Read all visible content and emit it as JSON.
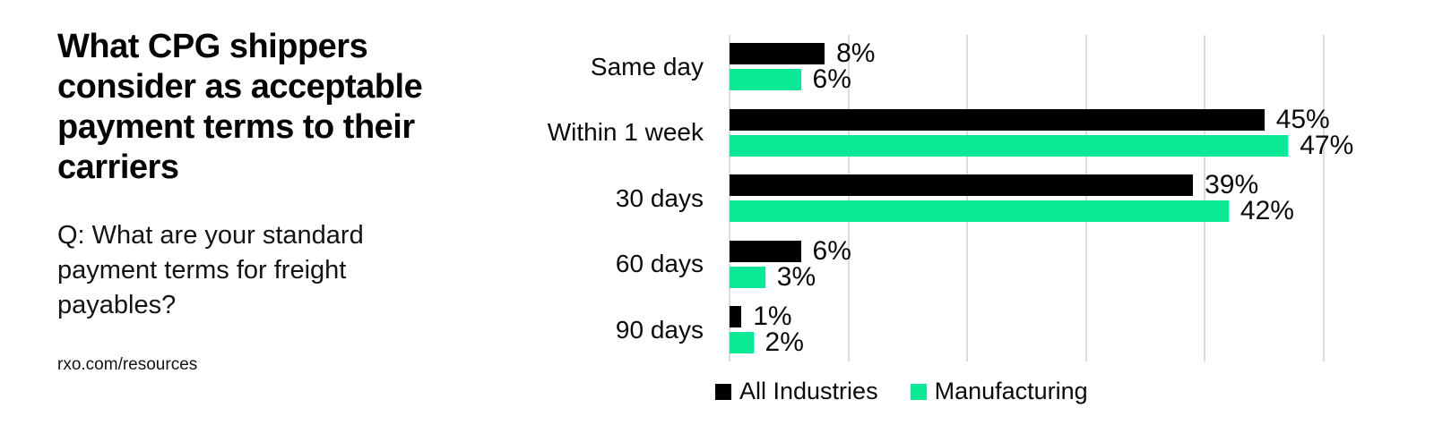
{
  "left_panel": {
    "title": "What CPG shippers consider as acceptable payment terms to their carriers",
    "question": "Q: What are your standard payment terms for freight payables?",
    "source": "rxo.com/resources"
  },
  "chart_data": {
    "type": "bar",
    "orientation": "horizontal",
    "title": "",
    "xlabel": "",
    "ylabel": "",
    "categories": [
      "Same day",
      "Within 1 week",
      "30 days",
      "60 days",
      "90 days"
    ],
    "series": [
      {
        "name": "All Industries",
        "color": "#000000",
        "values": [
          8,
          45,
          39,
          6,
          1
        ]
      },
      {
        "name": "Manufacturing",
        "color": "#0be896",
        "values": [
          6,
          47,
          42,
          3,
          2
        ]
      }
    ],
    "value_suffix": "%",
    "xlim": [
      0,
      50
    ],
    "gridline_step": 10,
    "grid": true,
    "grid_color": "#dcdcdc",
    "legend_position": "bottom"
  }
}
